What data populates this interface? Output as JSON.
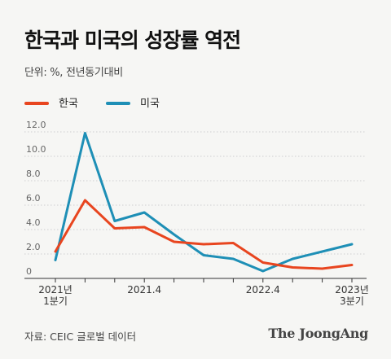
{
  "header": {
    "title": "한국과 미국의 성장률 역전",
    "unit": "단위: %, 전년동기대비"
  },
  "legend": {
    "items": [
      {
        "label": "한국",
        "color": "#e8451f"
      },
      {
        "label": "미국",
        "color": "#1e8fb6"
      }
    ]
  },
  "chart_data": {
    "type": "line",
    "x": [
      "2021 Q1",
      "2021 Q2",
      "2021 Q3",
      "2021 Q4",
      "2022 Q1",
      "2022 Q2",
      "2022 Q3",
      "2022 Q4",
      "2023 Q1",
      "2023 Q2",
      "2023 Q3"
    ],
    "series": [
      {
        "name": "한국",
        "color": "#e8451f",
        "values": [
          2.2,
          6.4,
          4.1,
          4.2,
          3.0,
          2.8,
          2.9,
          1.3,
          0.9,
          0.8,
          1.1
        ]
      },
      {
        "name": "미국",
        "color": "#1e8fb6",
        "values": [
          1.5,
          11.9,
          4.7,
          5.4,
          3.6,
          1.9,
          1.6,
          0.6,
          1.6,
          2.2,
          2.8
        ]
      }
    ],
    "ylim": [
      0,
      12
    ],
    "yticks": [
      "12.0",
      "10.0",
      "8.0",
      "6.0",
      "4.0",
      "2.0",
      "0"
    ],
    "grid": true,
    "xtick_labels": [
      {
        "index": 0,
        "lines": [
          "2021년",
          "1분기"
        ]
      },
      {
        "index": 3,
        "lines": [
          "2021.4"
        ]
      },
      {
        "index": 7,
        "lines": [
          "2022.4"
        ]
      },
      {
        "index": 10,
        "lines": [
          "2023년",
          "3분기"
        ]
      }
    ]
  },
  "footer": {
    "source": "자료: CEIC 글로벌 데이터",
    "brand": "The JoongAng"
  }
}
